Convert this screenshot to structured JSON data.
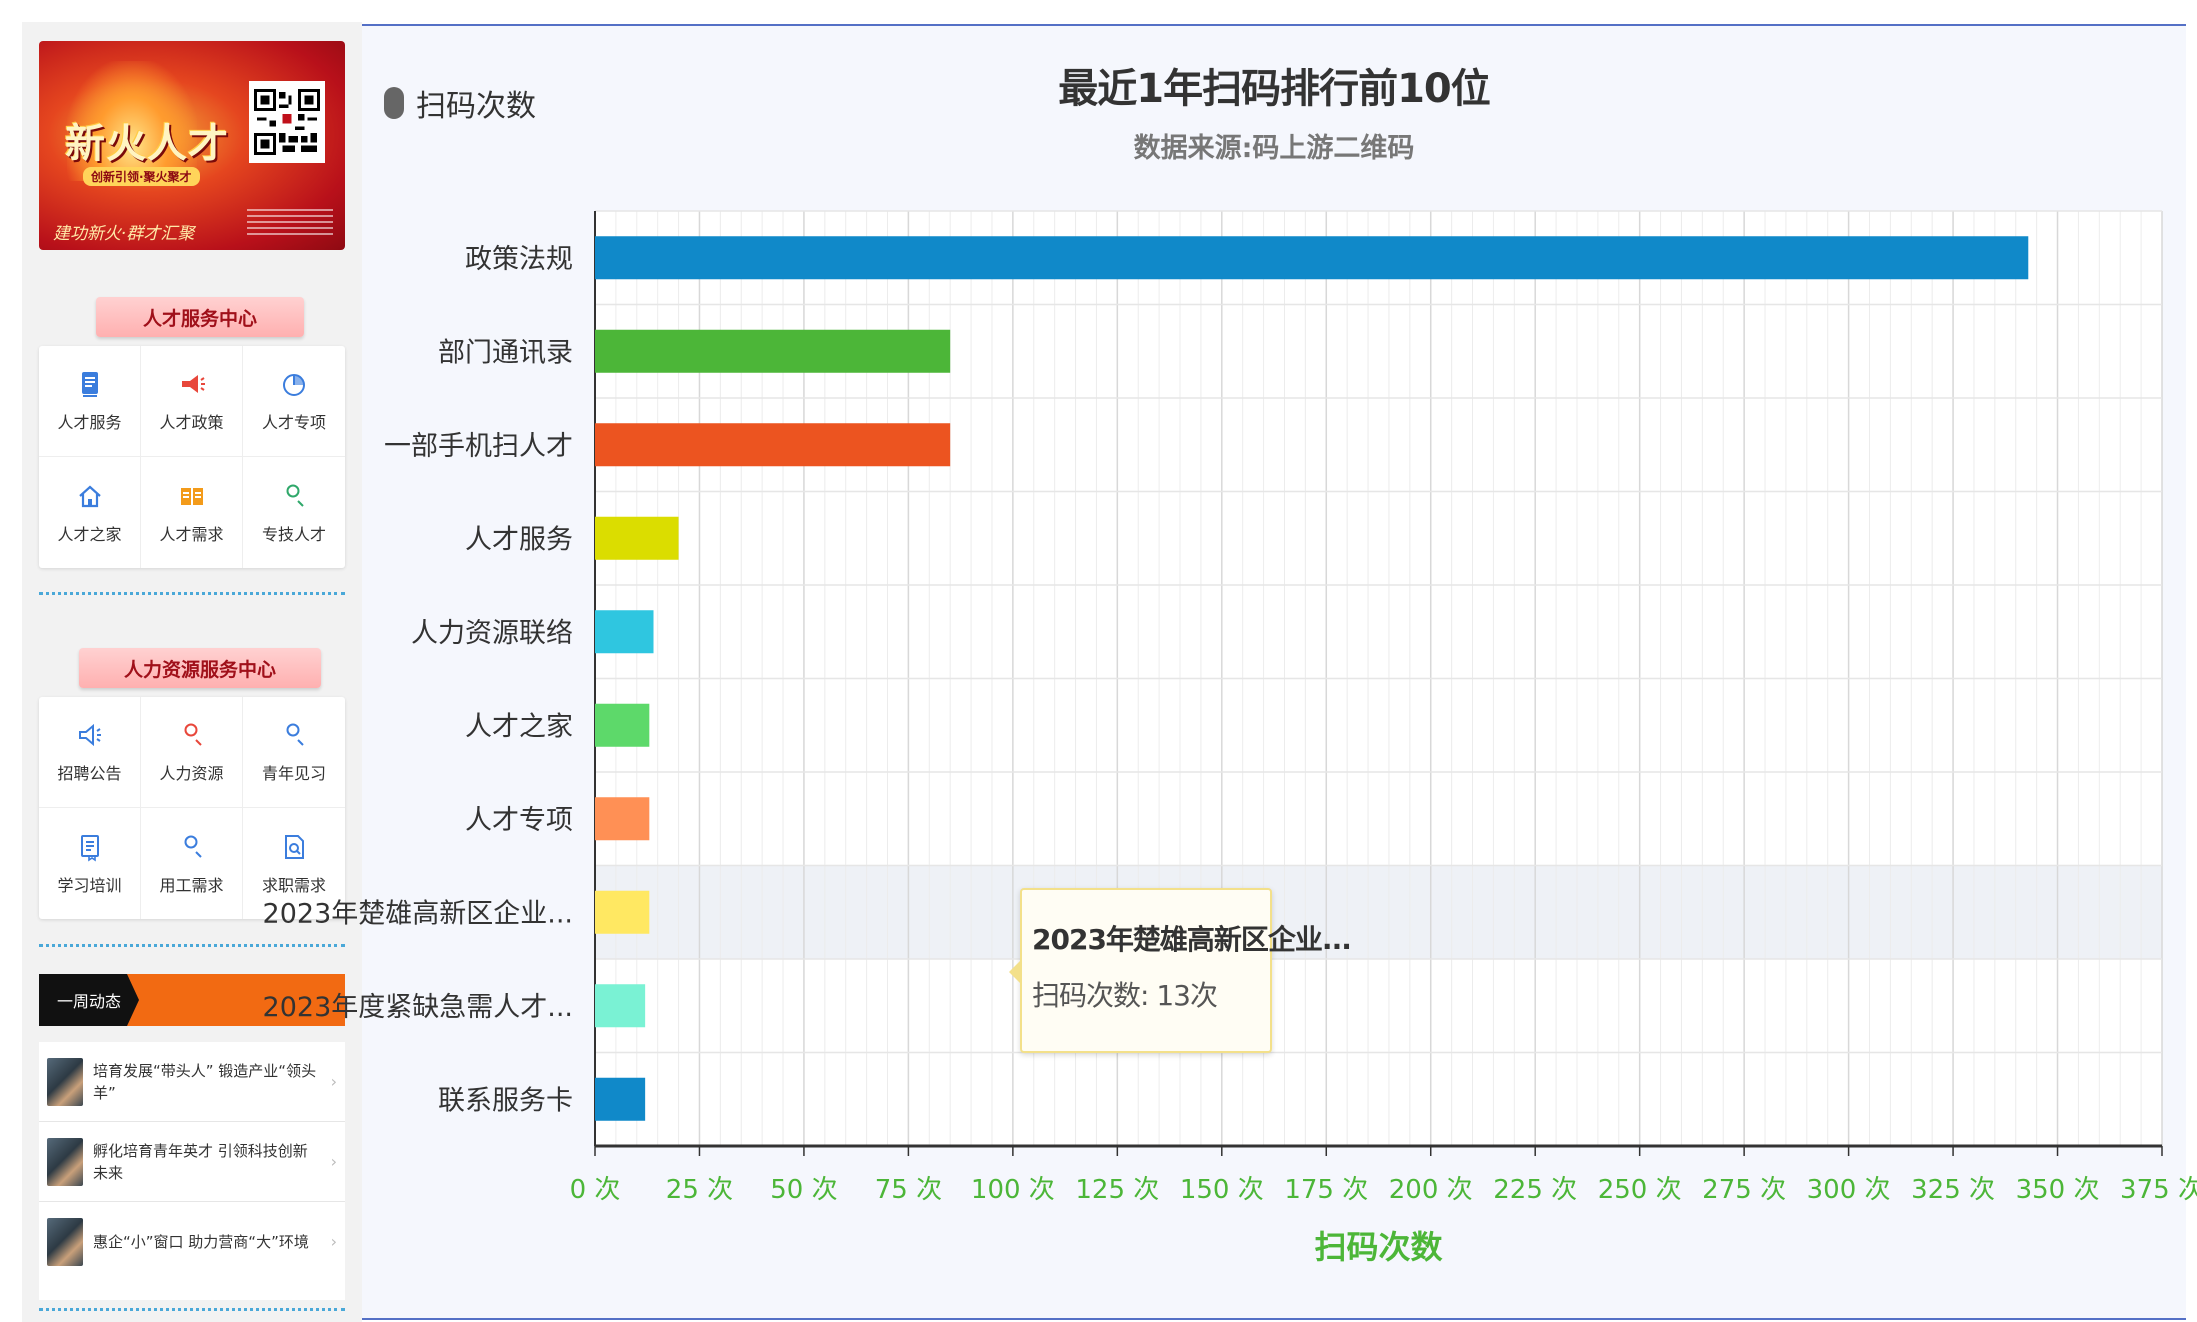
{
  "sidebar": {
    "banner": {
      "title": "新火人才",
      "slogan": "创新引领·聚火聚才",
      "footer": "建功新火·群才汇聚"
    },
    "service_center": {
      "title": "人才服务中心",
      "items": [
        {
          "label": "人才服务",
          "icon": "document-icon",
          "color": "#3b7ddd"
        },
        {
          "label": "人才政策",
          "icon": "megaphone-icon",
          "color": "#e8473b"
        },
        {
          "label": "人才专项",
          "icon": "pie-chart-icon",
          "color": "#3b7ddd"
        },
        {
          "label": "人才之家",
          "icon": "home-icon",
          "color": "#3b7ddd"
        },
        {
          "label": "人才需求",
          "icon": "book-icon",
          "color": "#f39b1a"
        },
        {
          "label": "专技人才",
          "icon": "user-icon",
          "color": "#2fa86a"
        }
      ]
    },
    "hr_center": {
      "title": "人力资源服务中心",
      "items": [
        {
          "label": "招聘公告",
          "icon": "speaker-icon",
          "color": "#3b7ddd"
        },
        {
          "label": "人力资源",
          "icon": "user-icon",
          "color": "#e8473b"
        },
        {
          "label": "青年见习",
          "icon": "user-icon",
          "color": "#3b7ddd"
        },
        {
          "label": "学习培训",
          "icon": "list-icon",
          "color": "#3b7ddd"
        },
        {
          "label": "用工需求",
          "icon": "user-icon",
          "color": "#3b7ddd"
        },
        {
          "label": "求职需求",
          "icon": "doc-search-icon",
          "color": "#3b7ddd"
        }
      ]
    },
    "weekly": {
      "label": "一周动态",
      "news": [
        "培育发展“带头人” 锻造产业“领头羊”",
        "孵化培育青年英才  引领科技创新未来",
        "惠企“小”窗口  助力营商“大”环境"
      ]
    }
  },
  "chart": {
    "title": "最近1年扫码排行前10位",
    "subtitle": "数据来源:码上游二维码",
    "legend_label": "扫码次数",
    "tooltip": {
      "title": "2023年楚雄高新区企业...",
      "row": "扫码次数: 13次"
    }
  },
  "chart_data": {
    "type": "bar",
    "orientation": "horizontal",
    "categories": [
      "政策法规",
      "部门通讯录",
      "一部手机扫人才",
      "人才服务",
      "人力资源联络",
      "人才之家",
      "人才专项",
      "2023年楚雄高新区企业...",
      "2023年度紧缺急需人才...",
      "联系服务卡"
    ],
    "series": [
      {
        "name": "扫码次数",
        "values": [
          343,
          85,
          85,
          20,
          14,
          13,
          13,
          13,
          12,
          12
        ]
      }
    ],
    "colors": [
      "#1089c9",
      "#4cb638",
      "#ec5420",
      "#dbdd00",
      "#2fc6e0",
      "#5dd96a",
      "#ff9055",
      "#ffe862",
      "#7af2d4",
      "#1089c9"
    ],
    "xlabel": "扫码次数",
    "xlim": [
      0,
      375
    ],
    "x_ticks": [
      0,
      25,
      50,
      75,
      100,
      125,
      150,
      175,
      200,
      225,
      250,
      275,
      300,
      325,
      350,
      375
    ],
    "x_tick_suffix": "次",
    "highlighted_category": "2023年楚雄高新区企业...",
    "grid": true
  }
}
